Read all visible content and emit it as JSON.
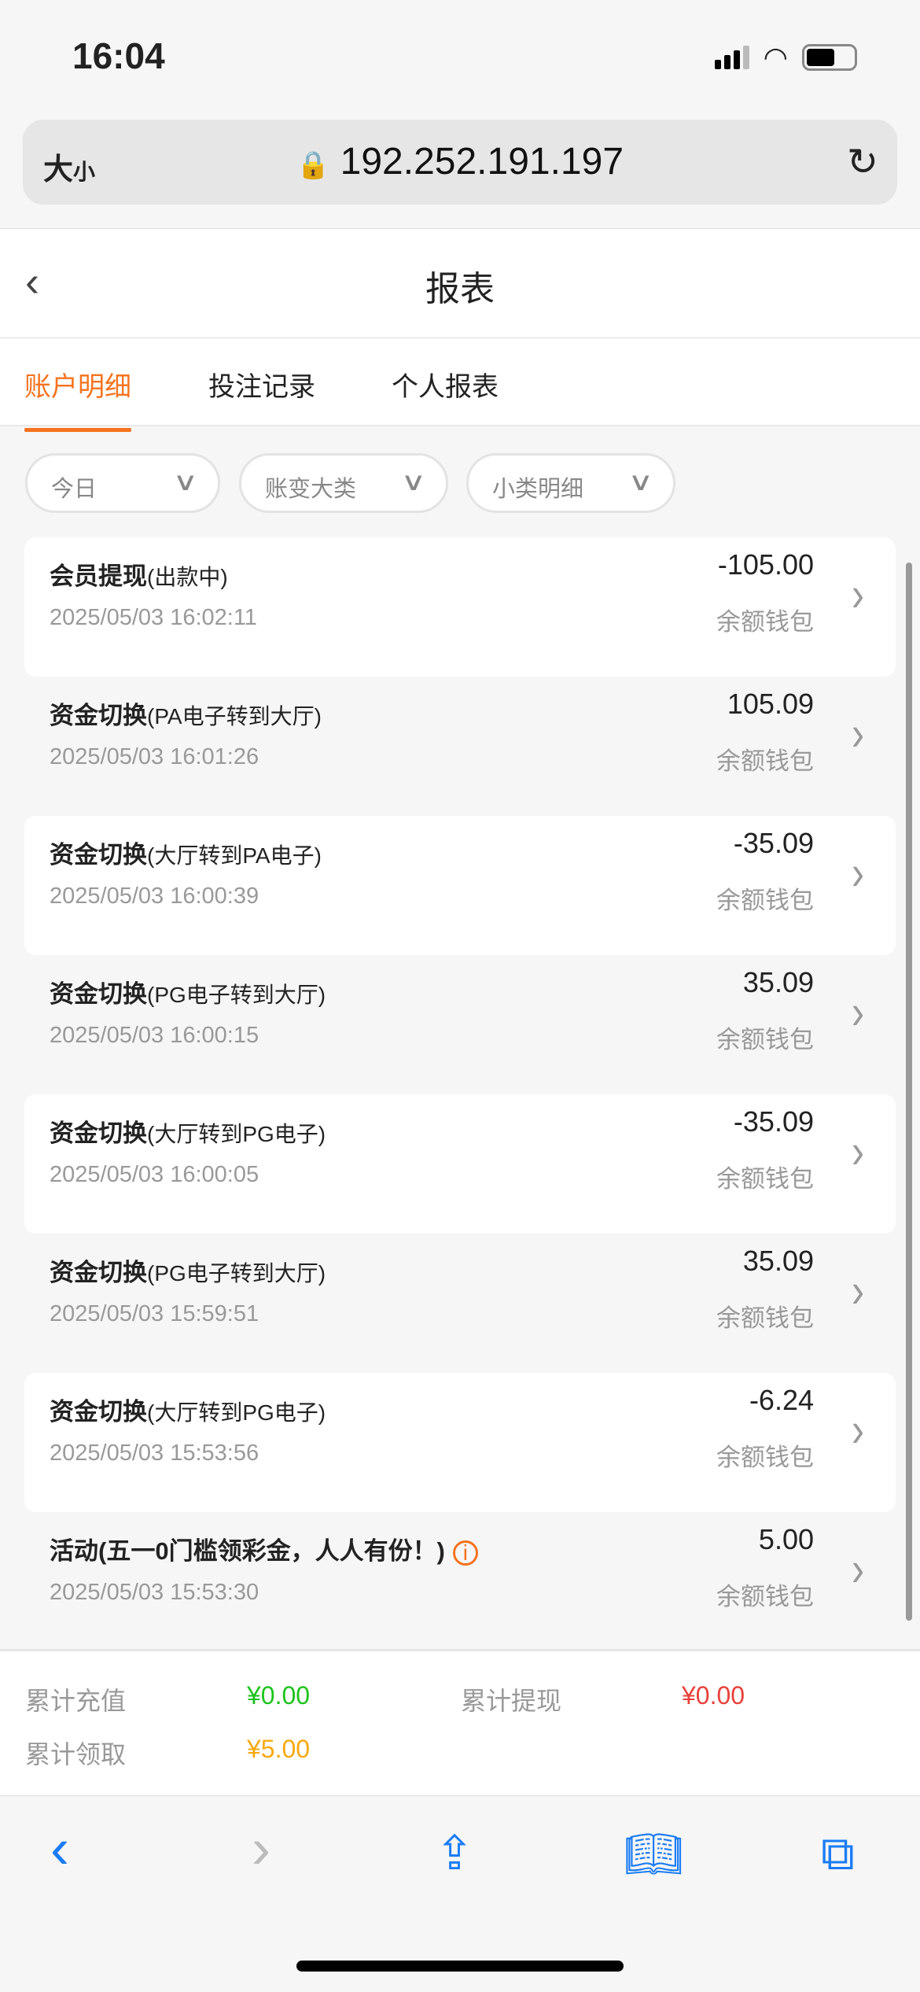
{
  "status_bar": {
    "time": "16:04"
  },
  "browser": {
    "text_size": "大",
    "text_size_small": "小",
    "url": "192.252.191.197"
  },
  "header": {
    "title": "报表"
  },
  "tabs": [
    {
      "label": "账户明细",
      "active": true
    },
    {
      "label": "投注记录"
    },
    {
      "label": "个人报表"
    }
  ],
  "filters": [
    {
      "label": "今日"
    },
    {
      "label": "账变大类"
    },
    {
      "label": "小类明细"
    }
  ],
  "records": [
    {
      "title": "会员提现",
      "sub": "(出款中)",
      "time": "2025/05/03 16:02:11",
      "amount": "-105.00",
      "wallet": "余额钱包"
    },
    {
      "title": "资金切换",
      "sub": "(PA电子转到大厅)",
      "time": "2025/05/03 16:01:26",
      "amount": "105.09",
      "wallet": "余额钱包"
    },
    {
      "title": "资金切换",
      "sub": "(大厅转到PA电子)",
      "time": "2025/05/03 16:00:39",
      "amount": "-35.09",
      "wallet": "余额钱包"
    },
    {
      "title": "资金切换",
      "sub": "(PG电子转到大厅)",
      "time": "2025/05/03 16:00:15",
      "amount": "35.09",
      "wallet": "余额钱包"
    },
    {
      "title": "资金切换",
      "sub": "(大厅转到PG电子)",
      "time": "2025/05/03 16:00:05",
      "amount": "-35.09",
      "wallet": "余额钱包"
    },
    {
      "title": "资金切换",
      "sub": "(PG电子转到大厅)",
      "time": "2025/05/03 15:59:51",
      "amount": "35.09",
      "wallet": "余额钱包"
    },
    {
      "title": "资金切换",
      "sub": "(大厅转到PG电子)",
      "time": "2025/05/03 15:53:56",
      "amount": "-6.24",
      "wallet": "余额钱包"
    },
    {
      "title": "活动(五一0门槛领彩金，人人有份！)",
      "sub": "",
      "time": "2025/05/03 15:53:30",
      "amount": "5.00",
      "wallet": "余额钱包",
      "info_icon": true
    }
  ],
  "summary": {
    "deposit_label": "累计充值",
    "deposit_value": "¥0.00",
    "deposit_color": "#1bc31b",
    "withdraw_label": "累计提现",
    "withdraw_value": "¥0.00",
    "withdraw_color": "#e8423a",
    "claim_label": "累计领取",
    "claim_value": "¥5.00",
    "claim_color": "#f7a90f"
  },
  "accent": "#f5731e"
}
